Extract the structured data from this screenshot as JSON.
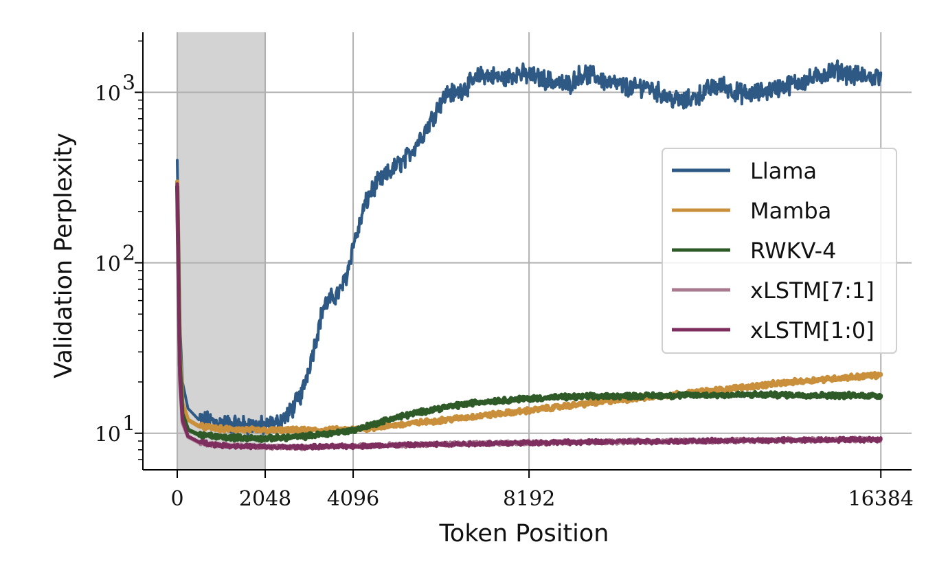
{
  "chart_data": {
    "type": "line",
    "xlabel": "Token Position",
    "ylabel": "Validation Perplexity",
    "xlim": [
      -800,
      17100
    ],
    "ylim": [
      6.1,
      2250
    ],
    "yscale": "log",
    "grid": true,
    "legend_position": "center-right",
    "x_ticks": [
      {
        "value": 0,
        "label": "0"
      },
      {
        "value": 2048,
        "label": "2048"
      },
      {
        "value": 4096,
        "label": "4096"
      },
      {
        "value": 8192,
        "label": "8192"
      },
      {
        "value": 16384,
        "label": "16384"
      }
    ],
    "y_ticks": [
      {
        "value": 10,
        "base": "10",
        "exp": "1"
      },
      {
        "value": 100,
        "base": "10",
        "exp": "2"
      },
      {
        "value": 1000,
        "base": "10",
        "exp": "3"
      }
    ],
    "shaded_region": {
      "x_start": 0,
      "x_end": 2048,
      "color": "#d3d3d3"
    },
    "series": [
      {
        "name": "Llama",
        "color": "#2e5985",
        "x": [
          0,
          30,
          60,
          120,
          250,
          500,
          1000,
          1500,
          2048,
          2300,
          2600,
          2900,
          3200,
          3400,
          3600,
          3800,
          3950,
          4100,
          4200,
          4350,
          4500,
          4700,
          4900,
          5100,
          5300,
          5500,
          5700,
          5900,
          6100,
          6300,
          6500,
          6700,
          6900,
          7100,
          7300,
          7600,
          7900,
          8200,
          8500,
          8800,
          9100,
          9400,
          9700,
          10000,
          10300,
          10600,
          10900,
          11200,
          11500,
          11800,
          12100,
          12400,
          12700,
          13000,
          13300,
          13600,
          13900,
          14200,
          14500,
          14800,
          15100,
          15400,
          15700,
          16000,
          16200,
          16384
        ],
        "values": [
          400,
          140,
          45,
          20,
          14,
          12,
          11.5,
          11.2,
          11,
          11.3,
          13,
          17,
          33,
          55,
          62,
          68,
          85,
          130,
          150,
          210,
          260,
          300,
          330,
          370,
          400,
          470,
          560,
          680,
          850,
          1000,
          980,
          1080,
          1150,
          1280,
          1250,
          1200,
          1300,
          1250,
          1200,
          1150,
          1100,
          1280,
          1250,
          1150,
          1100,
          1050,
          1100,
          1000,
          920,
          880,
          950,
          1050,
          1100,
          1000,
          970,
          1000,
          1050,
          1100,
          1150,
          1200,
          1300,
          1350,
          1250,
          1250,
          1200,
          1300
        ]
      },
      {
        "name": "Mamba",
        "color": "#c98f3a",
        "x": [
          0,
          30,
          60,
          120,
          250,
          500,
          1000,
          2048,
          3000,
          4096,
          5000,
          6000,
          7000,
          8192,
          9000,
          10000,
          11000,
          12000,
          13000,
          14000,
          15000,
          16384
        ],
        "values": [
          300,
          100,
          30,
          15,
          12,
          11,
          10.6,
          10.4,
          10.4,
          10.5,
          11.1,
          11.8,
          12.6,
          13.6,
          14.4,
          15.4,
          16.3,
          17.3,
          18.4,
          19.6,
          20.7,
          22
        ]
      },
      {
        "name": "RWKV-4",
        "color": "#2e5a27",
        "x": [
          0,
          30,
          60,
          120,
          250,
          500,
          1000,
          2048,
          3000,
          4096,
          5000,
          6000,
          7000,
          8000,
          9000,
          10000,
          11000,
          12000,
          13000,
          14000,
          15000,
          16384
        ],
        "values": [
          280,
          80,
          25,
          13,
          10.5,
          9.8,
          9.5,
          9.3,
          9.6,
          10.4,
          12.2,
          13.9,
          15.2,
          15.9,
          16.3,
          16.5,
          16.6,
          16.7,
          16.8,
          16.8,
          16.7,
          16.6
        ]
      },
      {
        "name": "xLSTM[7:1]",
        "color": "#a9798f",
        "x": [
          0,
          30,
          60,
          120,
          250,
          500,
          1000,
          2048,
          3000,
          4096,
          6000,
          8192,
          10000,
          12000,
          14000,
          16384
        ],
        "values": [
          260,
          70,
          20,
          11.5,
          9.5,
          8.8,
          8.5,
          8.3,
          8.3,
          8.4,
          8.6,
          8.8,
          8.9,
          9.0,
          9.1,
          9.2
        ]
      },
      {
        "name": "xLSTM[1:0]",
        "color": "#7d2e5f",
        "x": [
          0,
          30,
          60,
          120,
          250,
          500,
          1000,
          2048,
          3000,
          4096,
          6000,
          8192,
          10000,
          12000,
          14000,
          16384
        ],
        "values": [
          290,
          75,
          22,
          12,
          9.6,
          8.9,
          8.5,
          8.3,
          8.3,
          8.4,
          8.6,
          8.8,
          8.9,
          9.0,
          9.1,
          9.2
        ]
      }
    ]
  }
}
